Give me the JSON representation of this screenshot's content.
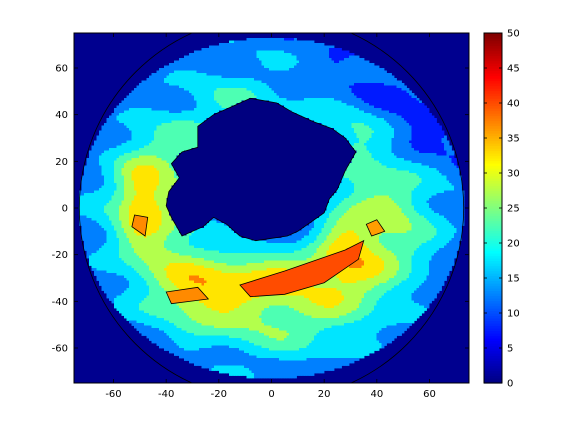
{
  "chart_data": {
    "type": "heatmap",
    "style": "filled-contour",
    "title": "",
    "xlabel": "",
    "ylabel": "",
    "xlim": [
      -75,
      75
    ],
    "ylim": [
      -75,
      75
    ],
    "x_ticks": [
      -60,
      -40,
      -20,
      0,
      20,
      40,
      60
    ],
    "y_ticks": [
      60,
      40,
      20,
      0,
      -20,
      -40,
      -60
    ],
    "colorbar": {
      "colormap": "jet",
      "range": [
        0,
        50
      ],
      "ticks": [
        0,
        5,
        10,
        15,
        20,
        25,
        30,
        35,
        40,
        45,
        50
      ]
    },
    "contour_interval": 5,
    "grid": false,
    "background_value": 0,
    "domain_radius": 73,
    "land_value": 0,
    "regions": [
      {
        "name": "high band south",
        "value": 40,
        "points": [
          [
            -12,
            -33
          ],
          [
            5,
            -27
          ],
          [
            28,
            -18
          ],
          [
            35,
            -14
          ],
          [
            33,
            -22
          ],
          [
            20,
            -32
          ],
          [
            5,
            -37
          ],
          [
            -8,
            -38
          ]
        ]
      },
      {
        "name": "high spot west",
        "value": 37,
        "points": [
          [
            -52,
            -3
          ],
          [
            -47,
            -4
          ],
          [
            -48,
            -12
          ],
          [
            -53,
            -8
          ]
        ]
      },
      {
        "name": "high spot southwest",
        "value": 37,
        "points": [
          [
            -40,
            -36
          ],
          [
            -28,
            -34
          ],
          [
            -24,
            -39
          ],
          [
            -38,
            -41
          ]
        ]
      },
      {
        "name": "high spot east",
        "value": 36,
        "points": [
          [
            40,
            -5
          ],
          [
            43,
            -10
          ],
          [
            38,
            -12
          ],
          [
            36,
            -7
          ]
        ]
      }
    ]
  }
}
